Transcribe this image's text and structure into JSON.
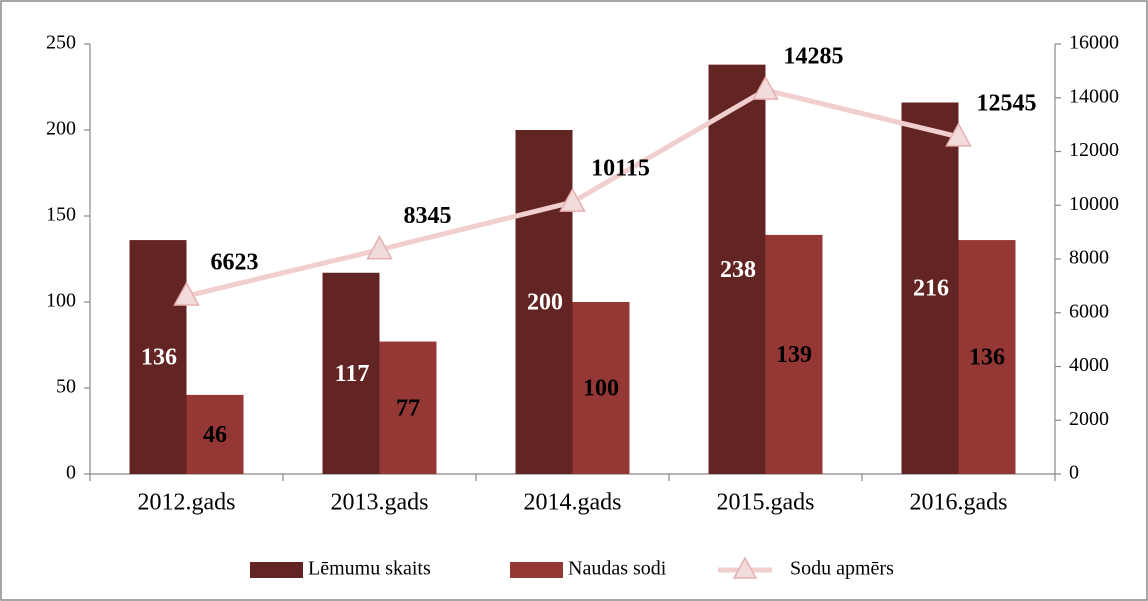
{
  "chart_data": {
    "type": "bar",
    "categories": [
      "2012.gads",
      "2013.gads",
      "2014.gads",
      "2015.gads",
      "2016.gads"
    ],
    "series": [
      {
        "name": "Lēmumu skaits",
        "color": "#632523",
        "values": [
          136,
          117,
          200,
          238,
          216
        ]
      },
      {
        "name": "Naudas sodi",
        "color": "#953735",
        "values": [
          46,
          77,
          100,
          139,
          136
        ]
      },
      {
        "name": "Sodu apmērs",
        "color": "#f2cfcf",
        "axis": "y2",
        "type": "line",
        "values": [
          6623,
          8345,
          10115,
          14285,
          12545
        ]
      }
    ],
    "ylim": [
      0,
      250
    ],
    "yticks": [
      0,
      50,
      100,
      150,
      200,
      250
    ],
    "y2lim": [
      0,
      16000
    ],
    "y2ticks": [
      0,
      2000,
      4000,
      6000,
      8000,
      10000,
      12000,
      14000,
      16000
    ],
    "legend": "bottom"
  }
}
